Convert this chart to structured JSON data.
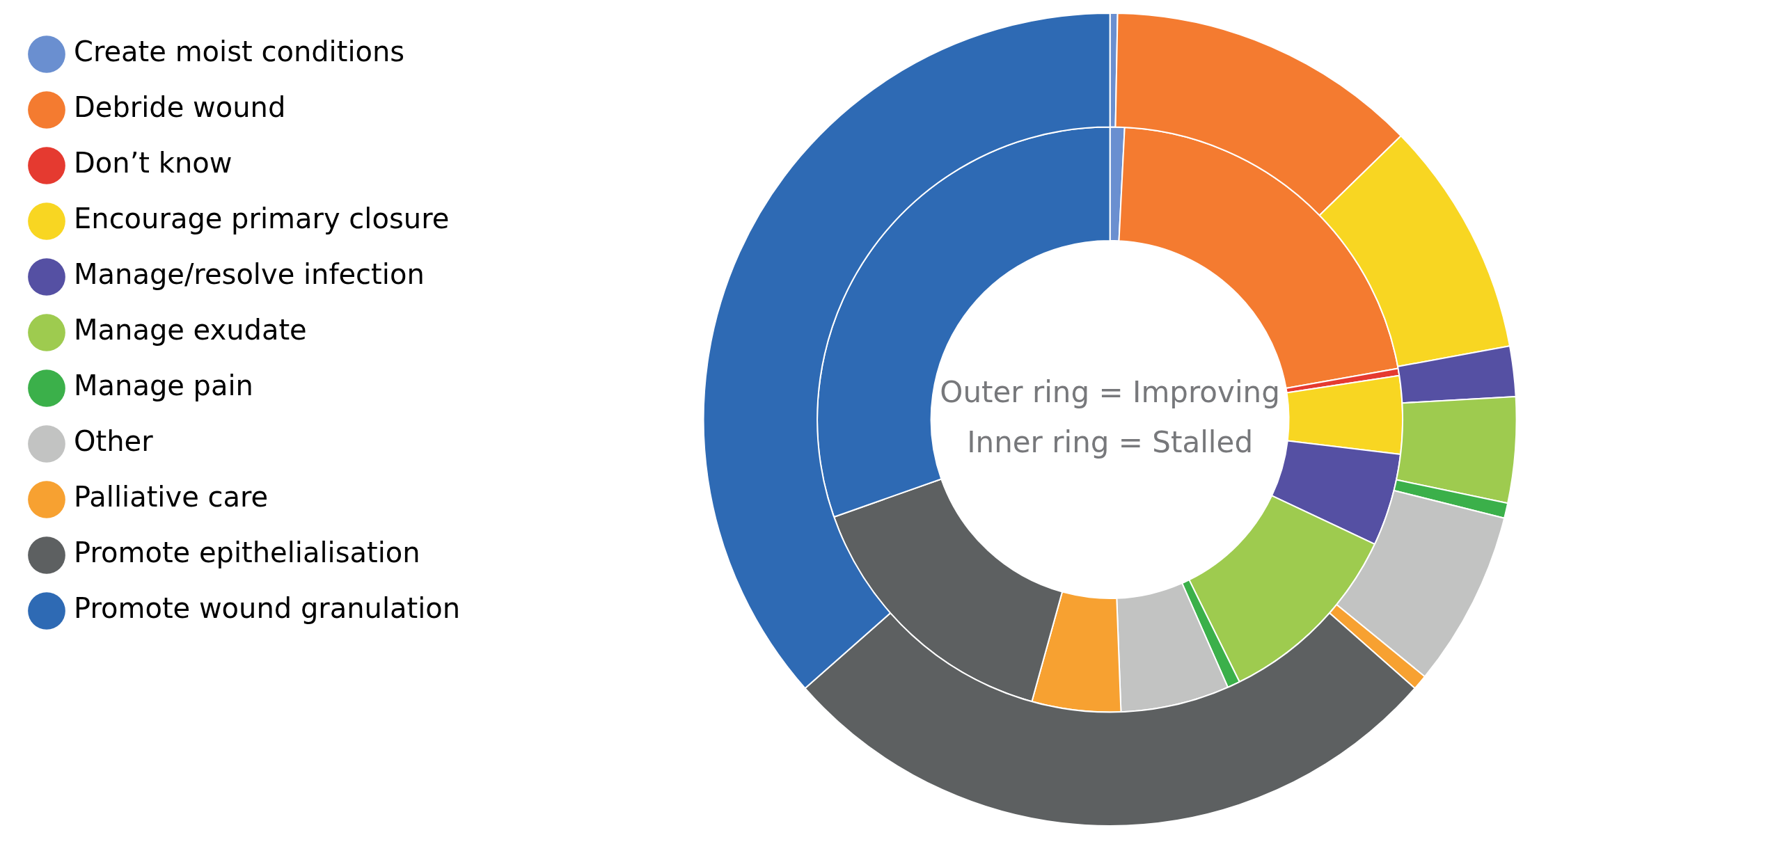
{
  "chart_data": {
    "type": "donut",
    "categories": [
      "Create moist conditions",
      "Debride wound",
      "Don’t know",
      "Encourage primary closure",
      "Manage/resolve infection",
      "Manage exudate",
      "Manage pain",
      "Other",
      "Palliative care",
      "Promote epithelialisation",
      "Promote wound granulation"
    ],
    "colors": [
      "#6a8fd0",
      "#f47b30",
      "#e53a30",
      "#f8d622",
      "#5550a3",
      "#9ecb4f",
      "#3bb04a",
      "#c2c3c2",
      "#f7a131",
      "#5d6061",
      "#2e6ab4"
    ],
    "series": [
      {
        "values": [
          0.3,
          12.4,
          0,
          9.4,
          2,
          4.2,
          0.6,
          7,
          0.6,
          27,
          36.5
        ]
      },
      {
        "values": [
          0.8,
          21.4,
          0.4,
          4.3,
          5.1,
          10.7,
          0.7,
          6,
          4.9,
          15.3,
          30.4
        ]
      }
    ],
    "annotations": [
      "Outer ring = Improving",
      "Inner ring = Stalled"
    ],
    "legend": "left"
  }
}
